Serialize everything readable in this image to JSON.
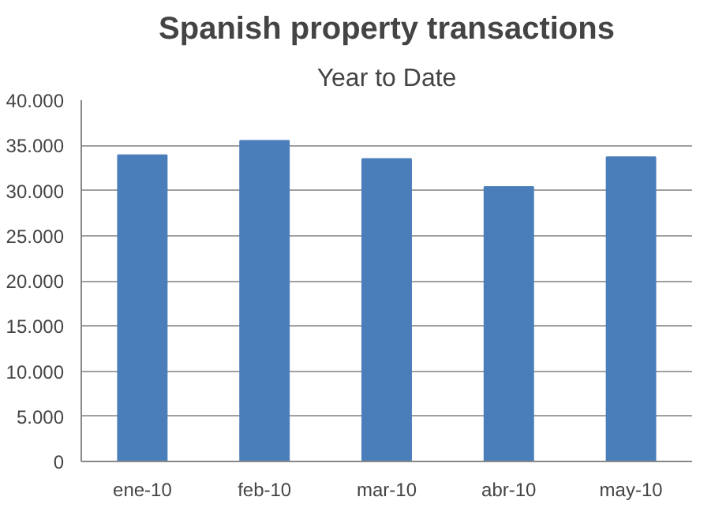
{
  "chart_data": {
    "type": "bar",
    "title": "Spanish property transactions",
    "subtitle": "Year to Date",
    "categories": [
      "ene-10",
      "feb-10",
      "mar-10",
      "abr-10",
      "may-10"
    ],
    "values": [
      33900,
      35500,
      33500,
      30400,
      33700
    ],
    "color": "#4a7ebb",
    "ylim": [
      0,
      40000
    ],
    "yticks": [
      0,
      {
        "value": 5000,
        "label": "5.000"
      },
      {
        "value": 10000,
        "label": "10.000"
      },
      {
        "value": 15000,
        "label": "15.000"
      },
      {
        "value": 20000,
        "label": "20.000"
      },
      {
        "value": 25000,
        "label": "25.000"
      },
      {
        "value": 30000,
        "label": "30.000"
      },
      {
        "value": 35000,
        "label": "35.000"
      },
      {
        "value": 40000,
        "label": "40.000"
      }
    ],
    "grid": "y"
  }
}
